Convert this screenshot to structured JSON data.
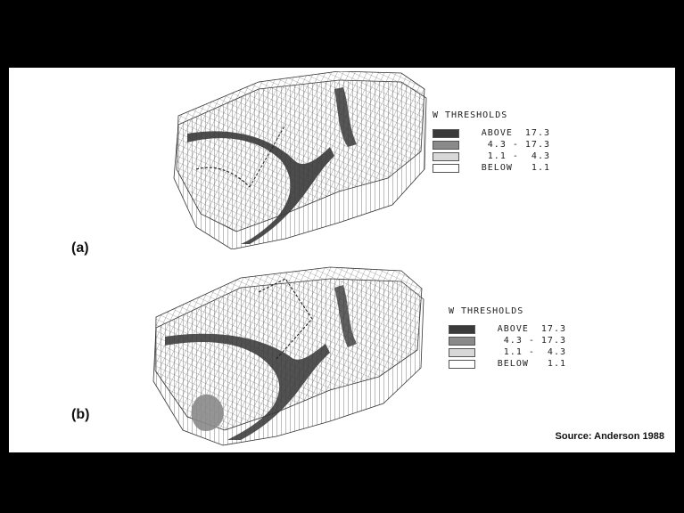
{
  "panels": [
    {
      "label": "(a)",
      "legend": {
        "title": "W  THRESHOLDS",
        "items": [
          {
            "label": "ABOVE  17.3",
            "color": "#3a3a3a"
          },
          {
            "label": "4.3 - 17.3",
            "color": "#8a8a8a"
          },
          {
            "label": "1.1 -  4.3",
            "color": "#d8d8d8"
          },
          {
            "label": "BELOW   1.1",
            "color": "#ffffff"
          }
        ]
      }
    },
    {
      "label": "(b)",
      "legend": {
        "title": "W  THRESHOLDS",
        "items": [
          {
            "label": "ABOVE  17.3",
            "color": "#3a3a3a"
          },
          {
            "label": "4.3 - 17.3",
            "color": "#8a8a8a"
          },
          {
            "label": "1.1 -  4.3",
            "color": "#d8d8d8"
          },
          {
            "label": "BELOW   1.1",
            "color": "#ffffff"
          }
        ]
      }
    }
  ],
  "source": "Source: Anderson 1988"
}
